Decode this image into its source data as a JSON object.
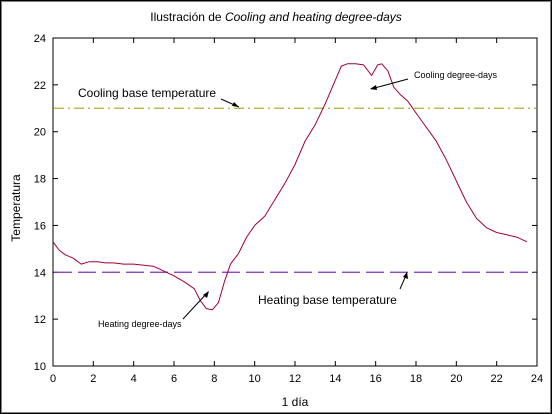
{
  "chart_data": {
    "type": "line",
    "title_prefix": "Ilustración de ",
    "title_italic": "Cooling and heating degree-days",
    "xlabel": "1 día",
    "ylabel": "Temperatura",
    "xlim": [
      0,
      24
    ],
    "ylim": [
      10,
      24
    ],
    "xticks": [
      "0",
      "2",
      "4",
      "6",
      "8",
      "10",
      "12",
      "14",
      "16",
      "18",
      "20",
      "22",
      "24"
    ],
    "yticks": [
      "10",
      "12",
      "14",
      "16",
      "18",
      "20",
      "22",
      "24"
    ],
    "grid": false,
    "series": [
      {
        "color": "#a0003a",
        "x": [
          0,
          0.3,
          0.6,
          1.0,
          1.4,
          1.8,
          2.2,
          2.6,
          3.0,
          3.5,
          4.0,
          4.5,
          5.0,
          5.5,
          6.0,
          6.5,
          7.0,
          7.3,
          7.6,
          7.9,
          8.2,
          8.5,
          8.8,
          9.2,
          9.6,
          10.0,
          10.5,
          11.0,
          11.5,
          12.0,
          12.5,
          13.0,
          13.5,
          14.0,
          14.3,
          14.6,
          15.0,
          15.4,
          15.8,
          16.1,
          16.3,
          16.6,
          16.9,
          17.2,
          17.6,
          18.0,
          18.5,
          19.0,
          19.5,
          20.0,
          20.5,
          21.0,
          21.5,
          22.0,
          22.5,
          23.0,
          23.5
        ],
        "y": [
          15.3,
          14.95,
          14.75,
          14.6,
          14.35,
          14.45,
          14.45,
          14.4,
          14.4,
          14.35,
          14.35,
          14.3,
          14.25,
          14.05,
          13.85,
          13.6,
          13.3,
          12.8,
          12.45,
          12.4,
          12.7,
          13.6,
          14.35,
          14.8,
          15.5,
          16.0,
          16.4,
          17.1,
          17.8,
          18.6,
          19.6,
          20.3,
          21.2,
          22.2,
          22.8,
          22.9,
          22.9,
          22.85,
          22.4,
          22.85,
          22.9,
          22.6,
          21.9,
          21.6,
          21.3,
          20.8,
          20.2,
          19.6,
          18.8,
          17.9,
          17.0,
          16.3,
          15.9,
          15.7,
          15.6,
          15.5,
          15.3
        ]
      }
    ],
    "reference_lines": [
      {
        "name": "Cooling base temperature",
        "y": 21,
        "color": "#b0b030",
        "style": "dash-dot"
      },
      {
        "name": "Heating base temperature",
        "y": 14,
        "color": "#8030c0",
        "style": "dashed"
      }
    ],
    "annotations": {
      "cooling_base": "Cooling base temperature",
      "heating_base": "Heating base temperature",
      "cooling_dd": "Cooling degree-days",
      "heating_dd": "Heating degree-days"
    }
  }
}
